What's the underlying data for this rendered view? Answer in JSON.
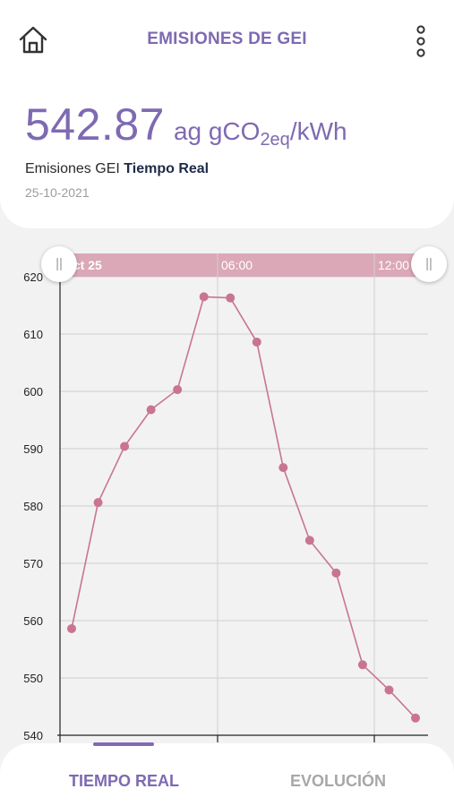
{
  "header": {
    "title": "EMISIONES DE GEI",
    "home_icon": "home-icon",
    "menu_icon": "kebab-menu-icon"
  },
  "summary": {
    "value": "542.87",
    "unit_prefix": "ag gCO",
    "unit_sub": "2eq",
    "unit_suffix": "/kWh",
    "label": "Emisiones GEI",
    "label_bold": "Tiempo Real",
    "date": "25-10-2021"
  },
  "colors": {
    "accent": "#7e6ab2",
    "series": "#c97590",
    "band": "#dba8b8",
    "label_dark": "#1e2b48"
  },
  "chart_data": {
    "type": "line",
    "time_labels": [
      "Oct 25",
      "06:00",
      "12:00"
    ],
    "ylim": [
      540,
      620
    ],
    "y_ticks": [
      "620",
      "610",
      "600",
      "590",
      "580",
      "570",
      "560",
      "550",
      "540"
    ],
    "grid": true,
    "series": [
      {
        "values": [
          558.6,
          580.6,
          590.4,
          596.8,
          600.3,
          616.5,
          616.3,
          608.6,
          586.7,
          574.0,
          568.3,
          552.3,
          547.9,
          543.0
        ]
      }
    ]
  },
  "slider": {
    "handle_glyph": "||"
  },
  "tabs": [
    {
      "label": "TIEMPO REAL"
    },
    {
      "label": "EVOLUCIÓN"
    }
  ]
}
